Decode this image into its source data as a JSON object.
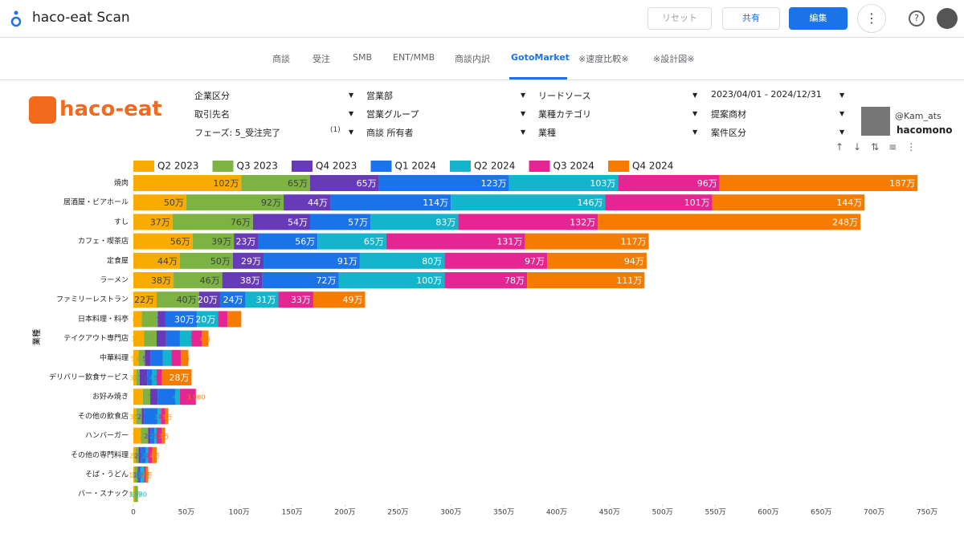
{
  "header": {
    "title": "haco-eat Scan",
    "reset": "リセット",
    "share": "共有",
    "edit": "編集"
  },
  "tabs": [
    "商談",
    "受注",
    "SMB",
    "ENT/MMB",
    "商談内訳",
    "GotoMarket",
    "※速度比較※",
    "※設計図※"
  ],
  "active_tab": 5,
  "logo": "haco-eat",
  "filters": [
    "企業区分",
    "営業部",
    "リードソース",
    "2023/04/01 - 2024/12/31",
    "取引先名",
    "営業グループ",
    "業種カテゴリ",
    "提案商材",
    "フェーズ: 5_受注完了",
    "商談 所有者",
    "業種",
    "案件区分"
  ],
  "filter_count": "(1)",
  "author": "@Kam_ats",
  "brand": "hacomono",
  "chart_data": {
    "type": "stacked-hbar",
    "y_label": "業種",
    "categories": [
      "焼肉",
      "居酒屋・ビアホール",
      "すし",
      "カフェ・喫茶店",
      "定食屋",
      "ラーメン",
      "ファミリーレストラン",
      "日本料理・料亭",
      "テイクアウト専門店",
      "中華料理",
      "デリバリー飲食サービス",
      "お好み焼き",
      "その他の飲食店",
      "ハンバーガー",
      "その他の専門料理",
      "そば・うどん",
      "バー・スナック"
    ],
    "series": [
      {
        "name": "Q2 2023",
        "color": "#f9ab00",
        "label_color": "#3c4043",
        "values": [
          1020000,
          500000,
          370000,
          560000,
          440000,
          380000,
          220000,
          80000,
          100000,
          50000,
          30000,
          90000,
          30000,
          70000,
          20000,
          10000,
          10000
        ],
        "value_labels": [
          "102万",
          "50万",
          "37万",
          "56万",
          "44万",
          "38万",
          "22万",
          "8万",
          "10万",
          "5万",
          "3万",
          "9万",
          "3万",
          "7万",
          "2万",
          "1万",
          "1万"
        ]
      },
      {
        "name": "Q3 2023",
        "color": "#7cb342",
        "label_color": "#3c4043",
        "values": [
          650000,
          920000,
          760000,
          390000,
          500000,
          460000,
          400000,
          150000,
          120000,
          60000,
          30000,
          70000,
          50000,
          70000,
          30000,
          30000,
          30000
        ],
        "value_labels": [
          "65万",
          "92万",
          "76万",
          "39万",
          "50万",
          "46万",
          "40万",
          "15万",
          "12万",
          "6万",
          "3万",
          "7万",
          "5万",
          "7万",
          "3万",
          "3万",
          "3万"
        ]
      },
      {
        "name": "Q4 2023",
        "color": "#673ab7",
        "label_color": "#ffffff",
        "values": [
          650000,
          440000,
          540000,
          230000,
          290000,
          380000,
          200000,
          70000,
          90000,
          50000,
          70000,
          70000,
          20000,
          20000,
          20000,
          10000,
          null
        ],
        "value_labels": [
          "65万",
          "44万",
          "54万",
          "23万",
          "29万",
          "38万",
          "20万",
          "7万",
          "9万",
          "5万",
          "7万",
          "7万",
          "2万",
          "2万",
          "2万",
          "1万",
          null
        ]
      },
      {
        "name": "Q1 2024",
        "color": "#1a73e8",
        "label_color": "#ffffff",
        "values": [
          1230000,
          1140000,
          570000,
          560000,
          910000,
          720000,
          240000,
          300000,
          130000,
          120000,
          50000,
          170000,
          130000,
          40000,
          50000,
          20000,
          null
        ],
        "value_labels": [
          "123万",
          "114万",
          "57万",
          "56万",
          "91万",
          "72万",
          "24万",
          "30万",
          "13万",
          "12万",
          "5万",
          "17万",
          "13万",
          "4万",
          "5万",
          "2万",
          null
        ]
      },
      {
        "name": "Q2 2024",
        "color": "#12b5cb",
        "label_color": "#ffffff",
        "values": [
          1030000,
          1460000,
          830000,
          650000,
          800000,
          1000000,
          310000,
          200000,
          110000,
          80000,
          40000,
          40000,
          30000,
          20000,
          20000,
          30000,
          3980
        ],
        "value_labels": [
          "103万",
          "146万",
          "83万",
          "65万",
          "80万",
          "100万",
          "31万",
          "20万",
          "11万",
          "8万",
          "4万",
          "4万",
          "3万",
          "2万",
          "2万",
          "3万",
          "3,980"
        ]
      },
      {
        "name": "Q3 2024",
        "color": "#e52592",
        "label_color": "#ffffff",
        "values": [
          960000,
          1010000,
          1320000,
          1310000,
          970000,
          780000,
          330000,
          90000,
          100000,
          90000,
          50000,
          150000,
          40000,
          50000,
          40000,
          20000,
          null
        ],
        "value_labels": [
          "96万",
          "101万",
          "132万",
          "131万",
          "97万",
          "78万",
          "33万",
          "9万",
          "10万",
          "9万",
          "5万",
          "15万",
          "4万",
          "5万",
          "4万",
          "2万",
          null
        ]
      },
      {
        "name": "Q4 2024",
        "color": "#f57c00",
        "label_color": "#ffffff",
        "values": [
          1870000,
          1440000,
          2480000,
          1170000,
          940000,
          1110000,
          490000,
          130000,
          60000,
          70000,
          280000,
          3980,
          30000,
          30000,
          40000,
          20000,
          null
        ],
        "value_labels": [
          "187万",
          "144万",
          "248万",
          "117万",
          "94万",
          "111万",
          "49万",
          "13万",
          "6万",
          "7万",
          "28万",
          "3,980",
          "3万",
          "3万",
          "4万",
          "2万",
          null
        ]
      }
    ],
    "xlim": [
      0,
      7500000
    ],
    "xticks": [
      0,
      {
        "value": 500000,
        "label": "50万"
      },
      {
        "value": 1000000,
        "label": "100万"
      },
      {
        "value": 1500000,
        "label": "150万"
      },
      {
        "value": 2000000,
        "label": "200万"
      },
      {
        "value": 2500000,
        "label": "250万"
      },
      {
        "value": 3000000,
        "label": "300万"
      },
      {
        "value": 3500000,
        "label": "350万"
      },
      {
        "value": 4000000,
        "label": "400万"
      },
      {
        "value": 4500000,
        "label": "450万"
      },
      {
        "value": 5000000,
        "label": "500万"
      },
      {
        "value": 5500000,
        "label": "550万"
      },
      {
        "value": 6000000,
        "label": "600万"
      },
      {
        "value": 6500000,
        "label": "650万"
      },
      {
        "value": 7000000,
        "label": "700万"
      },
      {
        "value": 7500000,
        "label": "750万"
      }
    ]
  }
}
